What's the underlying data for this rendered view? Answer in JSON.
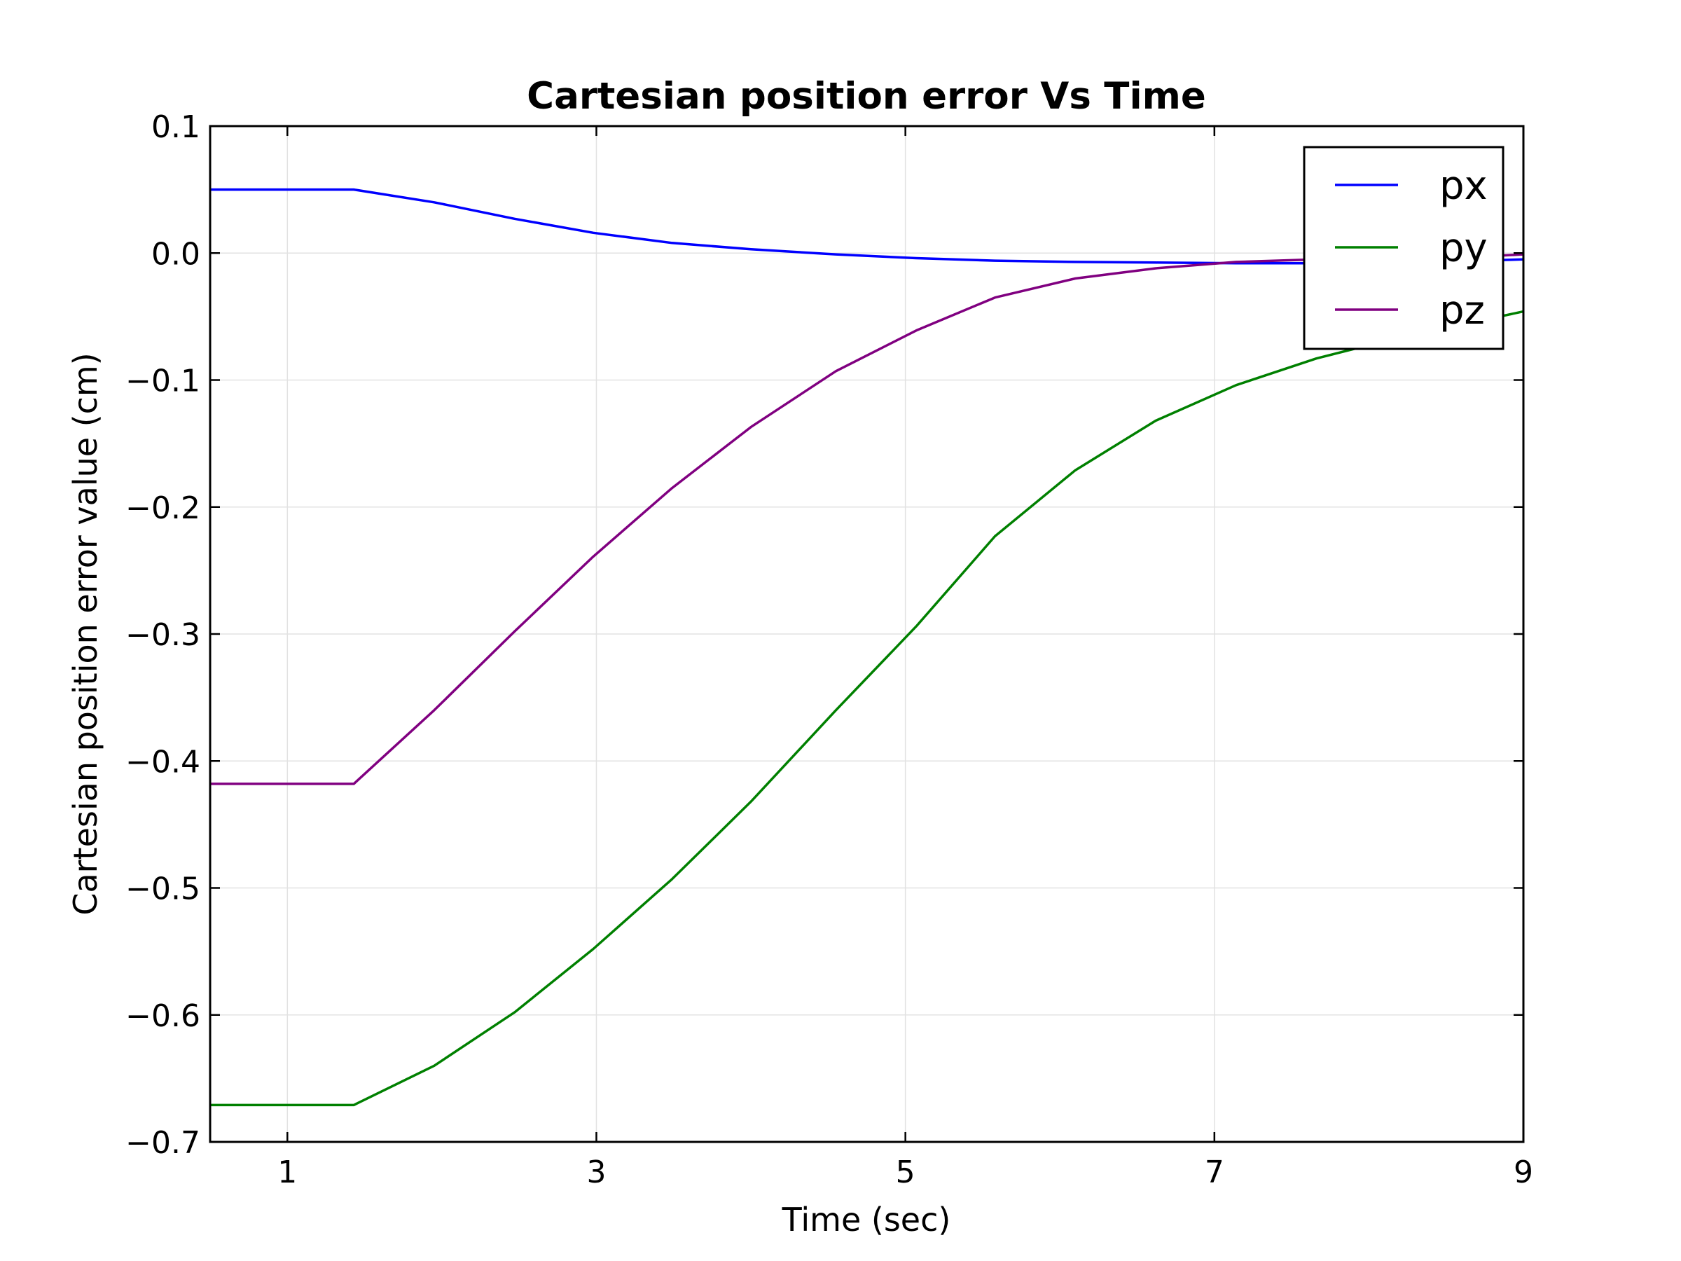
{
  "chart_data": {
    "type": "line",
    "title": "Cartesian position error Vs Time",
    "xlabel": "Time (sec)",
    "ylabel": "Cartesian position error value (cm)",
    "xlim": [
      0.5,
      9
    ],
    "ylim": [
      -0.7,
      0.1
    ],
    "xticks": [
      1,
      3,
      5,
      7,
      9
    ],
    "xtick_labels": [
      "1",
      "3",
      "5",
      "7",
      "9"
    ],
    "yticks": [
      0.1,
      0.0,
      -0.1,
      -0.2,
      -0.3,
      -0.4,
      -0.5,
      -0.6,
      -0.7
    ],
    "ytick_labels": [
      "0.1",
      "0.0",
      "−0.1",
      "−0.2",
      "−0.3",
      "−0.4",
      "−0.5",
      "−0.6",
      "−0.7"
    ],
    "grid": true,
    "legend_position": "top-right",
    "x": [
      0.5,
      1.43,
      1.95,
      2.47,
      2.98,
      3.49,
      4.0,
      4.55,
      5.07,
      5.58,
      6.1,
      6.62,
      7.14,
      7.66,
      8.18,
      8.69,
      9.0
    ],
    "series": [
      {
        "name": "px",
        "color": "#0000ff",
        "values": [
          0.05,
          0.05,
          0.04,
          0.027,
          0.016,
          0.008,
          0.003,
          -0.001,
          -0.004,
          -0.006,
          -0.007,
          -0.0075,
          -0.008,
          -0.008,
          -0.007,
          -0.006,
          -0.005
        ]
      },
      {
        "name": "py",
        "color": "#008000",
        "values": [
          -0.671,
          -0.671,
          -0.64,
          -0.598,
          -0.548,
          -0.493,
          -0.432,
          -0.36,
          -0.294,
          -0.223,
          -0.171,
          -0.132,
          -0.104,
          -0.083,
          -0.067,
          -0.054,
          -0.046
        ]
      },
      {
        "name": "pz",
        "color": "#800080",
        "values": [
          -0.418,
          -0.418,
          -0.36,
          -0.298,
          -0.239,
          -0.185,
          -0.137,
          -0.093,
          -0.061,
          -0.035,
          -0.02,
          -0.012,
          -0.007,
          -0.005,
          -0.004,
          -0.003,
          -0.001
        ]
      }
    ]
  }
}
